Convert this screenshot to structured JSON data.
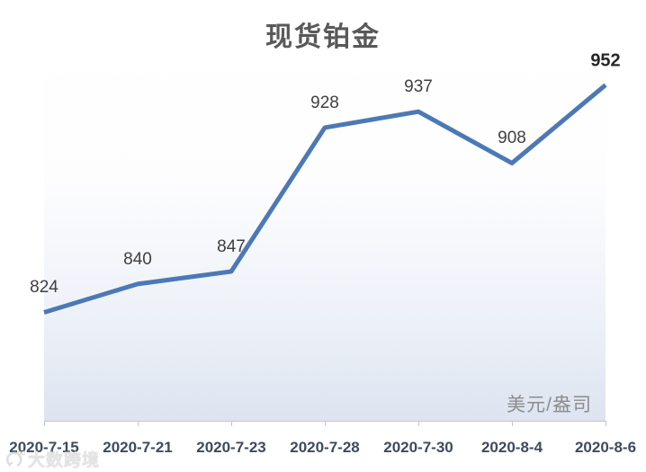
{
  "chart_data": {
    "type": "line",
    "title": "现货铂金",
    "unit_label": "美元/盎司",
    "categories": [
      "2020-7-15",
      "2020-7-21",
      "2020-7-23",
      "2020-7-28",
      "2020-7-30",
      "2020-8-4",
      "2020-8-6"
    ],
    "values": [
      824,
      840,
      847,
      928,
      937,
      908,
      952
    ],
    "ylim": [
      763,
      972
    ],
    "grid": false,
    "legend": false,
    "data_labels": true,
    "last_label_emphasized": true,
    "line_color": "#4c79b5",
    "axis_color": "#c1c6d0",
    "plot_gradient_bottom": "#dde4f0",
    "title_color": "#595959",
    "xlabel_color": "#3e4a5e",
    "data_label_color": "#3f3f3f"
  },
  "watermark": {
    "text": "大数跨境",
    "logo": "compass-logo-icon"
  }
}
